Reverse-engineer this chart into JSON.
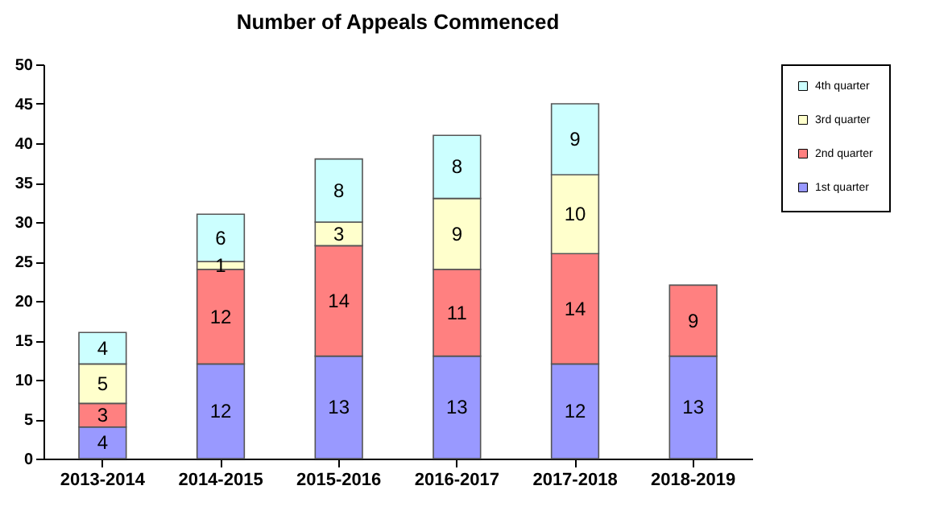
{
  "chart_data": {
    "type": "bar",
    "title": "Number of Appeals Commenced",
    "categories": [
      "2013-2014",
      "2014-2015",
      "2015-2016",
      "2016-2017",
      "2017-2018",
      "2018-2019"
    ],
    "stacked": true,
    "data_labels": true,
    "legend": "right",
    "grid": false,
    "ylim": [
      0,
      50
    ],
    "yticks": [
      0,
      5,
      10,
      15,
      20,
      25,
      30,
      35,
      40,
      45,
      50
    ],
    "series": [
      {
        "name": "1st quarter",
        "color": "#9999ff",
        "values": [
          4,
          12,
          13,
          13,
          12,
          13
        ]
      },
      {
        "name": "2nd quarter",
        "color": "#ff8080",
        "values": [
          3,
          12,
          14,
          11,
          14,
          9
        ]
      },
      {
        "name": "3rd quarter",
        "color": "#ffffcc",
        "values": [
          5,
          1,
          3,
          9,
          10,
          null
        ]
      },
      {
        "name": "4th quarter",
        "color": "#ccffff",
        "values": [
          4,
          6,
          8,
          8,
          9,
          null
        ]
      }
    ]
  }
}
